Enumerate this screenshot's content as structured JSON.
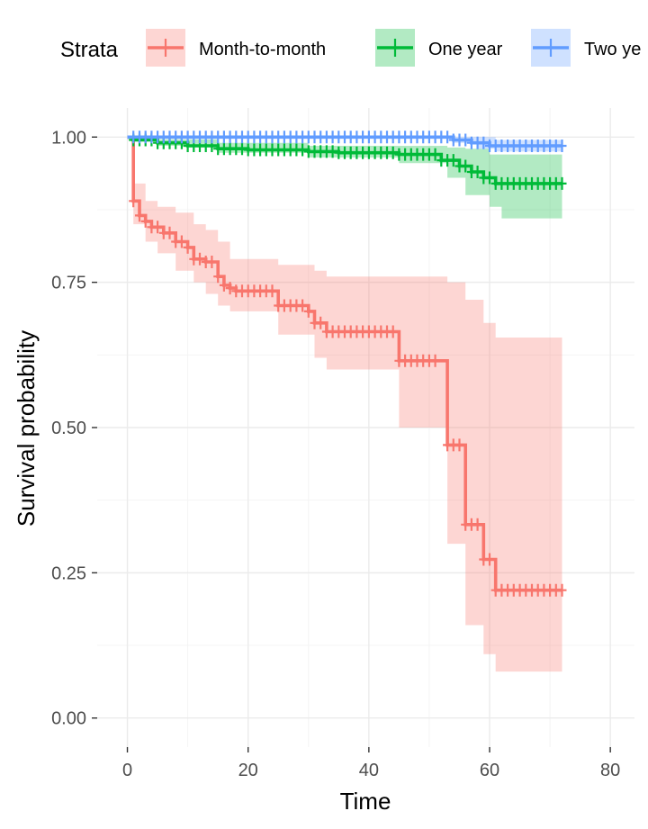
{
  "colors": {
    "month_to_month": "#F8766D",
    "one_year": "#00BA38",
    "two_year": "#619CFF",
    "grid_major": "#ebebeb",
    "grid_minor": "#f4f4f4",
    "axis_ticks": "#333333"
  },
  "chart_data": {
    "type": "line",
    "subtype": "kaplan-meier-step",
    "xlabel": "Time",
    "ylabel": "Survival probability",
    "xlim": [
      -5,
      84
    ],
    "ylim": [
      -0.05,
      1.05
    ],
    "x_ticks": [
      0,
      20,
      40,
      60,
      80
    ],
    "y_ticks": [
      0.0,
      0.25,
      0.5,
      0.75,
      1.0
    ],
    "x_tick_labels": [
      "0",
      "20",
      "40",
      "60",
      "80"
    ],
    "y_tick_labels": [
      "0.00",
      "0.25",
      "0.50",
      "0.75",
      "1.00"
    ],
    "grid": true,
    "legend": {
      "position": "top",
      "title": "Strata",
      "entries": [
        "Month-to-month",
        "One year",
        "Two ye"
      ]
    },
    "series": [
      {
        "name": "Month-to-month",
        "color_key": "month_to_month",
        "end_time": 72,
        "steps": [
          [
            0,
            1.0
          ],
          [
            1,
            0.89
          ],
          [
            2,
            0.865
          ],
          [
            3,
            0.855
          ],
          [
            4,
            0.845
          ],
          [
            6,
            0.835
          ],
          [
            8,
            0.82
          ],
          [
            10,
            0.81
          ],
          [
            11,
            0.79
          ],
          [
            13,
            0.785
          ],
          [
            15,
            0.76
          ],
          [
            16,
            0.745
          ],
          [
            17,
            0.74
          ],
          [
            18,
            0.735
          ],
          [
            25,
            0.71
          ],
          [
            30,
            0.7
          ],
          [
            31,
            0.68
          ],
          [
            33,
            0.665
          ],
          [
            45,
            0.615
          ],
          [
            53,
            0.47
          ],
          [
            56,
            0.333
          ],
          [
            59,
            0.273
          ],
          [
            61,
            0.22
          ]
        ],
        "ci": [
          [
            0,
            1.0,
            1.0
          ],
          [
            1,
            0.85,
            0.92
          ],
          [
            3,
            0.82,
            0.89
          ],
          [
            5,
            0.8,
            0.88
          ],
          [
            8,
            0.77,
            0.87
          ],
          [
            11,
            0.75,
            0.85
          ],
          [
            13,
            0.73,
            0.84
          ],
          [
            15,
            0.71,
            0.82
          ],
          [
            17,
            0.7,
            0.79
          ],
          [
            25,
            0.66,
            0.78
          ],
          [
            31,
            0.62,
            0.77
          ],
          [
            33,
            0.6,
            0.76
          ],
          [
            45,
            0.5,
            0.76
          ],
          [
            53,
            0.3,
            0.75
          ],
          [
            56,
            0.16,
            0.72
          ],
          [
            59,
            0.11,
            0.68
          ],
          [
            61,
            0.08,
            0.655
          ]
        ],
        "censor_times": [
          1,
          2,
          3,
          4,
          5,
          6,
          7,
          8,
          9,
          10,
          11,
          12,
          13,
          14,
          15,
          16,
          17,
          18,
          19,
          20,
          21,
          22,
          23,
          24,
          25,
          26,
          27,
          28,
          29,
          30,
          31,
          32,
          33,
          34,
          35,
          36,
          37,
          38,
          39,
          40,
          41,
          42,
          43,
          44,
          45,
          46,
          47,
          48,
          49,
          50,
          51,
          53,
          54,
          55,
          56,
          57,
          58,
          59,
          60,
          61,
          62,
          63,
          64,
          65,
          66,
          67,
          68,
          69,
          70,
          71,
          72
        ]
      },
      {
        "name": "One year",
        "color_key": "one_year",
        "end_time": 72,
        "steps": [
          [
            0,
            1.0
          ],
          [
            1,
            0.995
          ],
          [
            5,
            0.99
          ],
          [
            10,
            0.985
          ],
          [
            15,
            0.98
          ],
          [
            20,
            0.978
          ],
          [
            30,
            0.975
          ],
          [
            35,
            0.973
          ],
          [
            45,
            0.97
          ],
          [
            52,
            0.96
          ],
          [
            55,
            0.95
          ],
          [
            57,
            0.94
          ],
          [
            59,
            0.93
          ],
          [
            61,
            0.92
          ]
        ],
        "ci": [
          [
            0,
            1.0,
            1.0
          ],
          [
            5,
            0.985,
            0.996
          ],
          [
            15,
            0.973,
            0.99
          ],
          [
            30,
            0.965,
            0.985
          ],
          [
            45,
            0.955,
            0.985
          ],
          [
            53,
            0.93,
            0.982
          ],
          [
            56,
            0.9,
            0.98
          ],
          [
            60,
            0.88,
            0.97
          ],
          [
            62,
            0.86,
            0.97
          ]
        ],
        "censor_times": [
          1,
          2,
          3,
          4,
          5,
          6,
          7,
          8,
          9,
          10,
          11,
          12,
          13,
          14,
          15,
          16,
          17,
          18,
          19,
          20,
          21,
          22,
          23,
          24,
          25,
          26,
          27,
          28,
          29,
          30,
          31,
          32,
          33,
          34,
          35,
          36,
          37,
          38,
          39,
          40,
          41,
          42,
          43,
          44,
          45,
          46,
          47,
          48,
          49,
          50,
          51,
          52,
          53,
          54,
          55,
          56,
          57,
          58,
          59,
          60,
          61,
          62,
          63,
          64,
          65,
          66,
          67,
          68,
          69,
          70,
          71,
          72
        ]
      },
      {
        "name": "Two year",
        "color_key": "two_year",
        "end_time": 72,
        "steps": [
          [
            0,
            1.0
          ],
          [
            54,
            0.995
          ],
          [
            57,
            0.99
          ],
          [
            60,
            0.985
          ]
        ],
        "ci": [
          [
            0,
            1.0,
            1.0
          ],
          [
            54,
            0.99,
            1.0
          ],
          [
            58,
            0.98,
            1.0
          ],
          [
            61,
            0.975,
            0.995
          ]
        ],
        "censor_times": [
          1,
          2,
          3,
          4,
          5,
          6,
          7,
          8,
          9,
          10,
          11,
          12,
          13,
          14,
          15,
          16,
          17,
          18,
          19,
          20,
          21,
          22,
          23,
          24,
          25,
          26,
          27,
          28,
          29,
          30,
          31,
          32,
          33,
          34,
          35,
          36,
          37,
          38,
          39,
          40,
          41,
          42,
          43,
          44,
          45,
          46,
          47,
          48,
          49,
          50,
          51,
          52,
          53,
          54,
          55,
          56,
          57,
          58,
          59,
          60,
          61,
          62,
          63,
          64,
          65,
          66,
          67,
          68,
          69,
          70,
          71,
          72
        ]
      }
    ]
  }
}
